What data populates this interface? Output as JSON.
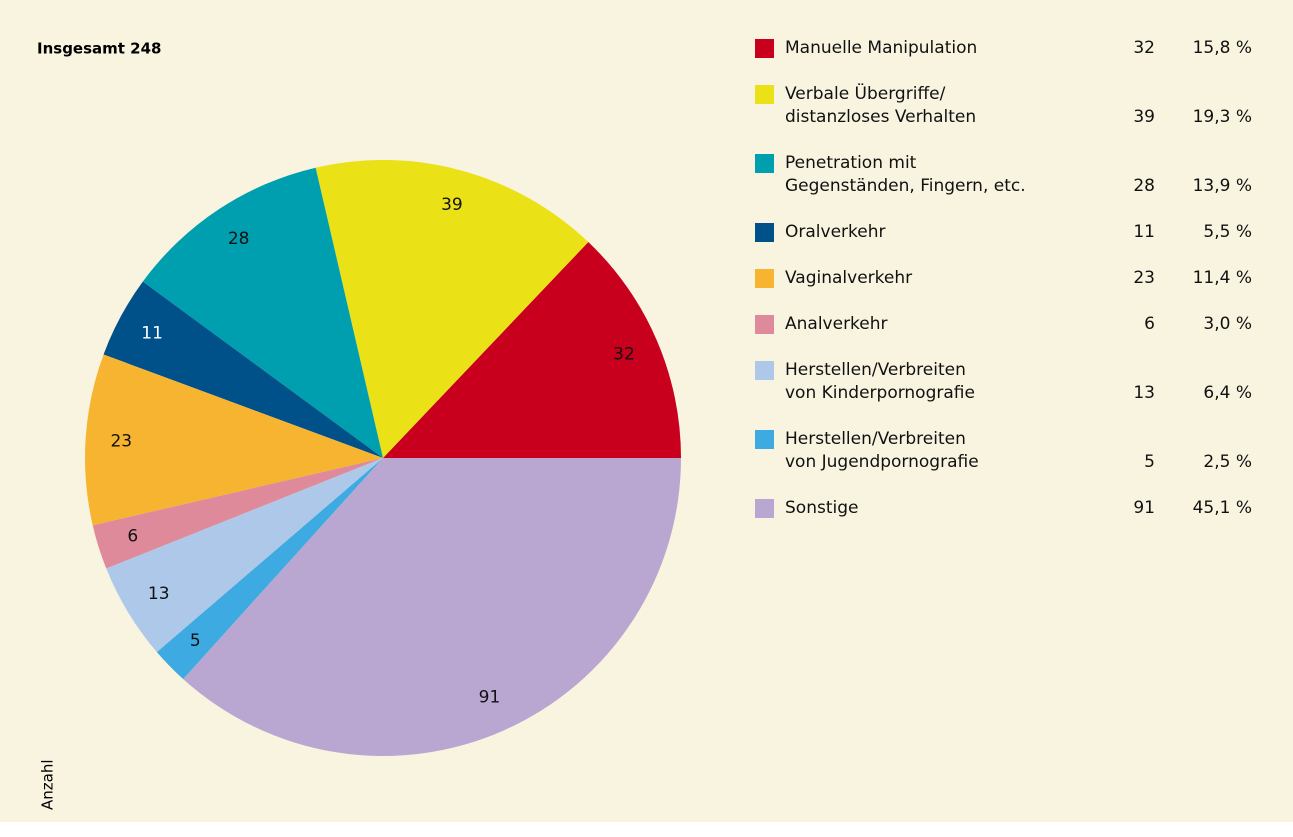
{
  "chart_data": {
    "type": "pie",
    "title": "Insgesamt 248",
    "axis_label": "Anzahl",
    "categories": [
      "Manuelle Manipulation",
      "Verbale Übergriffe/\ndistanzloses Verhalten",
      "Penetration mit\nGegenständen, Fingern, etc.",
      "Oralverkehr",
      "Vaginalverkehr",
      "Analverkehr",
      "Herstellen/Verbreiten\nvon Kinderpornografie",
      "Herstellen/Verbreiten\nvon Jugendpornografie",
      "Sonstige"
    ],
    "values": [
      32,
      39,
      28,
      11,
      23,
      6,
      13,
      5,
      91
    ],
    "percentage_labels": [
      "15,8 %",
      "19,3 %",
      "13,9 %",
      "5,5 %",
      "11,4 %",
      "3,0 %",
      "6,4 %",
      "2,5 %",
      "45,1 %"
    ],
    "colors": [
      "#c8001e",
      "#ebe117",
      "#009fb0",
      "#00508a",
      "#f7b431",
      "#df8a9b",
      "#aec8ea",
      "#3daae2",
      "#b9a7d1"
    ]
  }
}
